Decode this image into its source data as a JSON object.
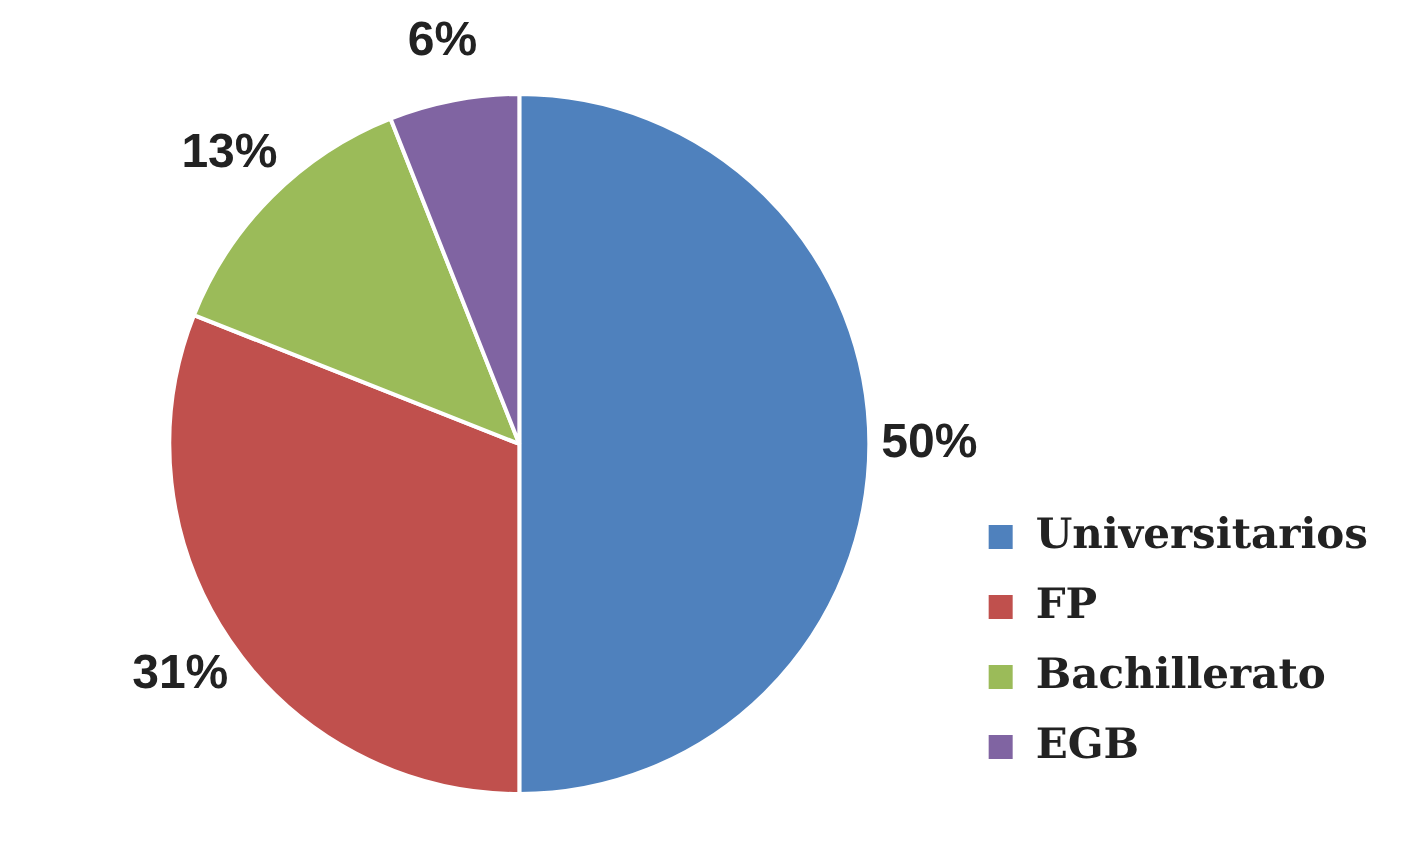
{
  "chart_data": {
    "type": "pie",
    "categories": [
      "Universitarios",
      "FP",
      "Bachillerato",
      "EGB"
    ],
    "values": [
      50,
      31,
      13,
      6
    ],
    "colors": [
      "#4f81bd",
      "#c0504d",
      "#9bbb59",
      "#8064a2"
    ],
    "value_labels": [
      "50%",
      "31%",
      "13%",
      "6%"
    ],
    "legend": "bottom right"
  }
}
